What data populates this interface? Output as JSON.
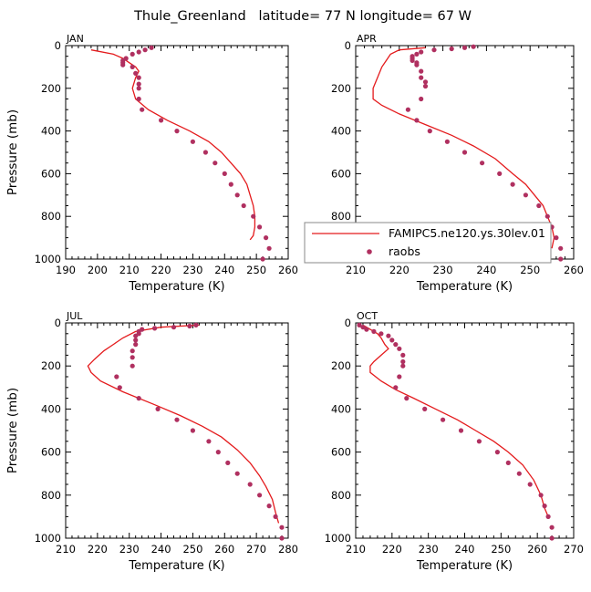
{
  "title": "Thule_Greenland   latitude= 77 N longitude= 67 W",
  "colors": {
    "model": "#e41a1c",
    "obs": "#b03060",
    "axis": "#000000"
  },
  "legend": {
    "model_label": "FAMIPC5.ne120.ys.30lev.01",
    "obs_label": "raobs"
  },
  "chart_data": [
    {
      "type": "line",
      "panel": "JAN",
      "xlabel": "Temperature (K)",
      "ylabel": "Pressure (mb)",
      "xlim": [
        190,
        260
      ],
      "ylim": [
        1000,
        0
      ],
      "xticks": [
        190,
        200,
        210,
        220,
        230,
        240,
        250,
        260
      ],
      "yticks": [
        0,
        200,
        400,
        600,
        800,
        1000
      ],
      "series": [
        {
          "name": "FAMIPC5.ne120.ys.30lev.01",
          "style": "line",
          "points": [
            [
              198,
              20
            ],
            [
              205,
              40
            ],
            [
              208,
              60
            ],
            [
              210,
              80
            ],
            [
              212,
              100
            ],
            [
              213,
              120
            ],
            [
              212,
              150
            ],
            [
              211,
              200
            ],
            [
              212,
              250
            ],
            [
              216,
              300
            ],
            [
              222,
              350
            ],
            [
              229,
              400
            ],
            [
              235,
              450
            ],
            [
              239,
              500
            ],
            [
              242,
              550
            ],
            [
              245,
              600
            ],
            [
              247,
              650
            ],
            [
              248,
              700
            ],
            [
              249,
              750
            ],
            [
              249.5,
              800
            ],
            [
              249.5,
              850
            ],
            [
              249,
              890
            ],
            [
              248,
              910
            ]
          ]
        },
        {
          "name": "raobs",
          "style": "scatter",
          "points": [
            [
              217,
              10
            ],
            [
              215,
              20
            ],
            [
              213,
              30
            ],
            [
              211,
              40
            ],
            [
              209,
              60
            ],
            [
              208,
              70
            ],
            [
              208,
              80
            ],
            [
              208,
              90
            ],
            [
              211,
              100
            ],
            [
              212,
              130
            ],
            [
              213,
              150
            ],
            [
              213,
              180
            ],
            [
              213,
              200
            ],
            [
              213,
              250
            ],
            [
              214,
              300
            ],
            [
              220,
              350
            ],
            [
              225,
              400
            ],
            [
              230,
              450
            ],
            [
              234,
              500
            ],
            [
              237,
              550
            ],
            [
              240,
              600
            ],
            [
              242,
              650
            ],
            [
              244,
              700
            ],
            [
              246,
              750
            ],
            [
              249,
              800
            ],
            [
              251,
              850
            ],
            [
              253,
              900
            ],
            [
              254,
              950
            ],
            [
              252,
              1000
            ]
          ]
        }
      ]
    },
    {
      "type": "line",
      "panel": "APR",
      "xlabel": "Temperature (K)",
      "ylabel": "",
      "xlim": [
        210,
        260
      ],
      "ylim": [
        1000,
        0
      ],
      "xticks": [
        210,
        220,
        230,
        240,
        250,
        260
      ],
      "yticks": [
        0,
        200,
        400,
        600,
        800,
        1000
      ],
      "legend": "bottom-right",
      "series": [
        {
          "name": "FAMIPC5.ne120.ys.30lev.01",
          "style": "line",
          "points": [
            [
              226,
              10
            ],
            [
              220,
              20
            ],
            [
              218,
              40
            ],
            [
              217,
              70
            ],
            [
              216,
              100
            ],
            [
              215,
              150
            ],
            [
              214,
              200
            ],
            [
              214,
              250
            ],
            [
              216,
              280
            ],
            [
              220,
              320
            ],
            [
              226,
              370
            ],
            [
              232,
              420
            ],
            [
              237,
              470
            ],
            [
              242,
              530
            ],
            [
              246,
              600
            ],
            [
              249,
              650
            ],
            [
              251,
              700
            ],
            [
              253,
              750
            ],
            [
              254,
              800
            ],
            [
              255,
              850
            ],
            [
              255.5,
              900
            ],
            [
              255,
              950
            ]
          ]
        },
        {
          "name": "raobs",
          "style": "scatter",
          "points": [
            [
              237,
              5
            ],
            [
              235,
              10
            ],
            [
              232,
              15
            ],
            [
              228,
              20
            ],
            [
              225,
              30
            ],
            [
              224,
              40
            ],
            [
              223,
              50
            ],
            [
              223,
              60
            ],
            [
              223,
              70
            ],
            [
              224,
              80
            ],
            [
              224,
              90
            ],
            [
              225,
              120
            ],
            [
              225,
              150
            ],
            [
              226,
              170
            ],
            [
              226,
              190
            ],
            [
              225,
              250
            ],
            [
              222,
              300
            ],
            [
              224,
              350
            ],
            [
              227,
              400
            ],
            [
              231,
              450
            ],
            [
              235,
              500
            ],
            [
              239,
              550
            ],
            [
              243,
              600
            ],
            [
              246,
              650
            ],
            [
              249,
              700
            ],
            [
              252,
              750
            ],
            [
              254,
              800
            ],
            [
              255,
              850
            ],
            [
              256,
              900
            ],
            [
              257,
              950
            ],
            [
              257,
              1000
            ]
          ]
        }
      ]
    },
    {
      "type": "line",
      "panel": "JUL",
      "xlabel": "Temperature (K)",
      "ylabel": "Pressure (mb)",
      "xlim": [
        210,
        280
      ],
      "ylim": [
        1000,
        0
      ],
      "xticks": [
        210,
        220,
        230,
        240,
        250,
        260,
        270,
        280
      ],
      "yticks": [
        0,
        200,
        400,
        600,
        800,
        1000
      ],
      "series": [
        {
          "name": "FAMIPC5.ne120.ys.30lev.01",
          "style": "line",
          "points": [
            [
              252,
              10
            ],
            [
              240,
              20
            ],
            [
              232,
              40
            ],
            [
              228,
              70
            ],
            [
              225,
              100
            ],
            [
              222,
              130
            ],
            [
              219,
              170
            ],
            [
              217,
              200
            ],
            [
              218,
              230
            ],
            [
              221,
              270
            ],
            [
              228,
              320
            ],
            [
              238,
              380
            ],
            [
              246,
              430
            ],
            [
              253,
              480
            ],
            [
              259,
              530
            ],
            [
              264,
              590
            ],
            [
              268,
              650
            ],
            [
              271,
              710
            ],
            [
              273,
              760
            ],
            [
              275,
              820
            ],
            [
              276,
              880
            ],
            [
              277,
              930
            ]
          ]
        },
        {
          "name": "raobs",
          "style": "scatter",
          "points": [
            [
              251,
              10
            ],
            [
              249,
              15
            ],
            [
              244,
              20
            ],
            [
              238,
              25
            ],
            [
              234,
              30
            ],
            [
              233,
              40
            ],
            [
              233,
              50
            ],
            [
              232,
              60
            ],
            [
              232,
              80
            ],
            [
              232,
              100
            ],
            [
              231,
              130
            ],
            [
              231,
              160
            ],
            [
              231,
              200
            ],
            [
              226,
              250
            ],
            [
              227,
              300
            ],
            [
              233,
              350
            ],
            [
              239,
              400
            ],
            [
              245,
              450
            ],
            [
              250,
              500
            ],
            [
              255,
              550
            ],
            [
              258,
              600
            ],
            [
              261,
              650
            ],
            [
              264,
              700
            ],
            [
              268,
              750
            ],
            [
              271,
              800
            ],
            [
              274,
              850
            ],
            [
              276,
              900
            ],
            [
              278,
              950
            ],
            [
              278,
              1000
            ]
          ]
        }
      ]
    },
    {
      "type": "line",
      "panel": "OCT",
      "xlabel": "Temperature (K)",
      "ylabel": "",
      "xlim": [
        210,
        270
      ],
      "ylim": [
        1000,
        0
      ],
      "xticks": [
        210,
        220,
        230,
        240,
        250,
        260,
        270
      ],
      "yticks": [
        0,
        200,
        400,
        600,
        800,
        1000
      ],
      "series": [
        {
          "name": "FAMIPC5.ne120.ys.30lev.01",
          "style": "line",
          "points": [
            [
              212,
              10
            ],
            [
              213,
              20
            ],
            [
              214,
              30
            ],
            [
              216,
              50
            ],
            [
              217,
              70
            ],
            [
              218,
              100
            ],
            [
              219,
              120
            ],
            [
              217,
              150
            ],
            [
              215,
              180
            ],
            [
              214,
              200
            ],
            [
              214,
              230
            ],
            [
              217,
              270
            ],
            [
              221,
              310
            ],
            [
              226,
              350
            ],
            [
              232,
              400
            ],
            [
              238,
              450
            ],
            [
              243,
              500
            ],
            [
              248,
              550
            ],
            [
              252,
              600
            ],
            [
              256,
              660
            ],
            [
              259,
              730
            ],
            [
              261,
              800
            ],
            [
              262,
              860
            ],
            [
              263,
              900
            ]
          ]
        },
        {
          "name": "raobs",
          "style": "scatter",
          "points": [
            [
              211,
              10
            ],
            [
              212,
              20
            ],
            [
              213,
              30
            ],
            [
              215,
              40
            ],
            [
              217,
              50
            ],
            [
              219,
              60
            ],
            [
              220,
              80
            ],
            [
              221,
              100
            ],
            [
              222,
              120
            ],
            [
              223,
              150
            ],
            [
              223,
              180
            ],
            [
              223,
              200
            ],
            [
              222,
              250
            ],
            [
              221,
              300
            ],
            [
              224,
              350
            ],
            [
              229,
              400
            ],
            [
              234,
              450
            ],
            [
              239,
              500
            ],
            [
              244,
              550
            ],
            [
              249,
              600
            ],
            [
              252,
              650
            ],
            [
              255,
              700
            ],
            [
              258,
              750
            ],
            [
              261,
              800
            ],
            [
              262,
              850
            ],
            [
              263,
              900
            ],
            [
              264,
              950
            ],
            [
              264,
              1000
            ]
          ]
        }
      ]
    }
  ]
}
